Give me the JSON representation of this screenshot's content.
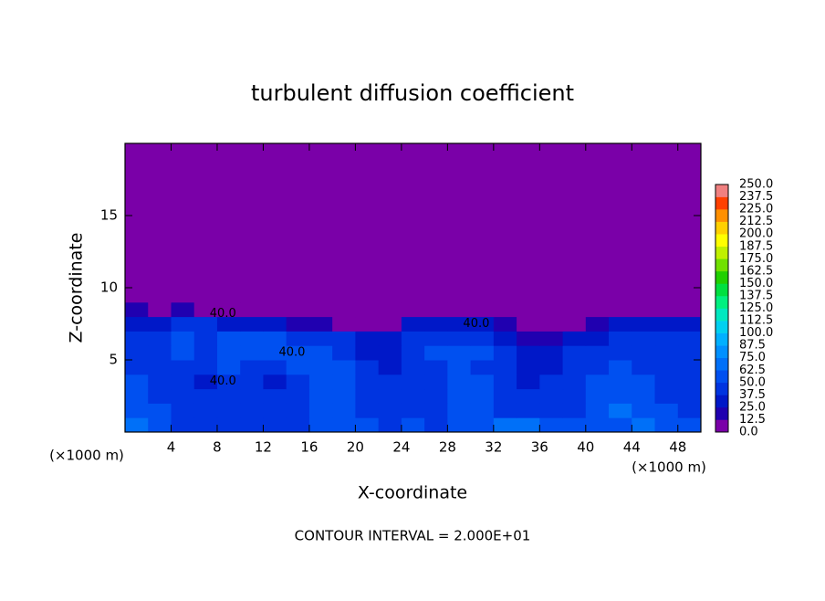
{
  "chart_data": {
    "type": "contour",
    "title": "turbulent diffusion coefficient",
    "xlabel": "X-coordinate",
    "ylabel": "Z-coordinate",
    "x_unit": "(×1000 m)",
    "y_unit": "(×1000 m)",
    "footer": "CONTOUR INTERVAL = 2.000E+01",
    "xlim": [
      0,
      50
    ],
    "ylim": [
      0,
      20
    ],
    "xticks": [
      4,
      8,
      12,
      16,
      20,
      24,
      28,
      32,
      36,
      40,
      44,
      48
    ],
    "yticks": [
      5,
      10,
      15
    ],
    "x_edges": [
      0,
      2,
      4,
      6,
      8,
      10,
      12,
      14,
      16,
      18,
      20,
      22,
      24,
      26,
      28,
      30,
      32,
      34,
      36,
      38,
      40,
      42,
      44,
      46,
      48,
      50
    ],
    "z_edges": [
      0,
      1,
      2,
      3,
      4,
      5,
      6,
      7,
      8,
      9,
      20
    ],
    "field": [
      [
        70,
        60,
        45,
        40,
        40,
        40,
        40,
        45,
        50,
        55,
        50,
        45,
        50,
        45,
        55,
        60,
        70,
        65,
        55,
        50,
        50,
        60,
        70,
        60,
        50
      ],
      [
        60,
        50,
        40,
        40,
        40,
        40,
        40,
        45,
        50,
        55,
        45,
        40,
        45,
        45,
        50,
        55,
        45,
        45,
        40,
        45,
        55,
        65,
        60,
        50,
        45
      ],
      [
        55,
        45,
        40,
        40,
        40,
        40,
        40,
        45,
        55,
        60,
        45,
        40,
        40,
        40,
        50,
        55,
        40,
        40,
        40,
        45,
        50,
        55,
        55,
        45,
        40
      ],
      [
        50,
        45,
        40,
        35,
        40,
        45,
        35,
        40,
        50,
        55,
        45,
        40,
        40,
        45,
        60,
        50,
        40,
        35,
        40,
        45,
        50,
        55,
        50,
        45,
        40
      ],
      [
        45,
        40,
        40,
        45,
        50,
        45,
        45,
        50,
        55,
        55,
        40,
        35,
        40,
        45,
        50,
        45,
        40,
        35,
        35,
        40,
        45,
        50,
        45,
        40,
        40
      ],
      [
        45,
        45,
        50,
        45,
        55,
        50,
        50,
        55,
        50,
        45,
        35,
        35,
        45,
        50,
        55,
        50,
        45,
        30,
        30,
        40,
        40,
        45,
        40,
        40,
        40
      ],
      [
        40,
        40,
        50,
        45,
        55,
        50,
        50,
        40,
        40,
        40,
        30,
        30,
        40,
        45,
        40,
        40,
        35,
        20,
        15,
        25,
        35,
        40,
        40,
        40,
        40
      ],
      [
        35,
        30,
        40,
        40,
        35,
        35,
        25,
        20,
        15,
        10,
        8,
        8,
        25,
        35,
        35,
        25,
        15,
        8,
        8,
        8,
        15,
        30,
        35,
        35,
        35
      ],
      [
        15,
        10,
        15,
        10,
        8,
        8,
        5,
        5,
        5,
        5,
        5,
        5,
        5,
        8,
        5,
        5,
        5,
        5,
        5,
        5,
        5,
        8,
        10,
        8,
        8
      ],
      [
        5,
        5,
        5,
        5,
        5,
        5,
        5,
        5,
        5,
        5,
        5,
        5,
        5,
        5,
        5,
        5,
        5,
        5,
        5,
        5,
        5,
        5,
        5,
        5,
        5
      ]
    ],
    "levels": [
      {
        "value": 0,
        "label": "0.0"
      },
      12.5,
      {
        "value": 25,
        "label": "25.0"
      },
      37.5,
      {
        "value": 50,
        "label": "50.0"
      },
      62.5,
      {
        "value": 75,
        "label": "75.0"
      },
      87.5,
      {
        "value": 100,
        "label": "100.0"
      },
      112.5,
      {
        "value": 125,
        "label": "125.0"
      },
      137.5,
      {
        "value": 150,
        "label": "150.0"
      },
      162.5,
      {
        "value": 175,
        "label": "175.0"
      },
      187.5,
      {
        "value": 200,
        "label": "200.0"
      },
      212.5,
      {
        "value": 225,
        "label": "225.0"
      },
      237.5,
      {
        "value": 250,
        "label": "250.0"
      }
    ],
    "level_colors": [
      "#7a00a8",
      "#2000b0",
      "#0018c8",
      "#0034e0",
      "#0050f0",
      "#0070f8",
      "#0090ff",
      "#00b0ff",
      "#00d0f0",
      "#00e8c0",
      "#00f080",
      "#00e040",
      "#20d000",
      "#70e000",
      "#c0f000",
      "#ffff00",
      "#ffd000",
      "#ff9000",
      "#ff4000",
      "#f08080"
    ],
    "contour_labels": [
      {
        "label": "40.0",
        "x": 8.5,
        "z": 8.2
      },
      {
        "label": "40.0",
        "x": 14.5,
        "z": 5.5
      },
      {
        "label": "40.0",
        "x": 8.5,
        "z": 3.5
      },
      {
        "label": "40.0",
        "x": 30.5,
        "z": 7.5
      }
    ]
  }
}
